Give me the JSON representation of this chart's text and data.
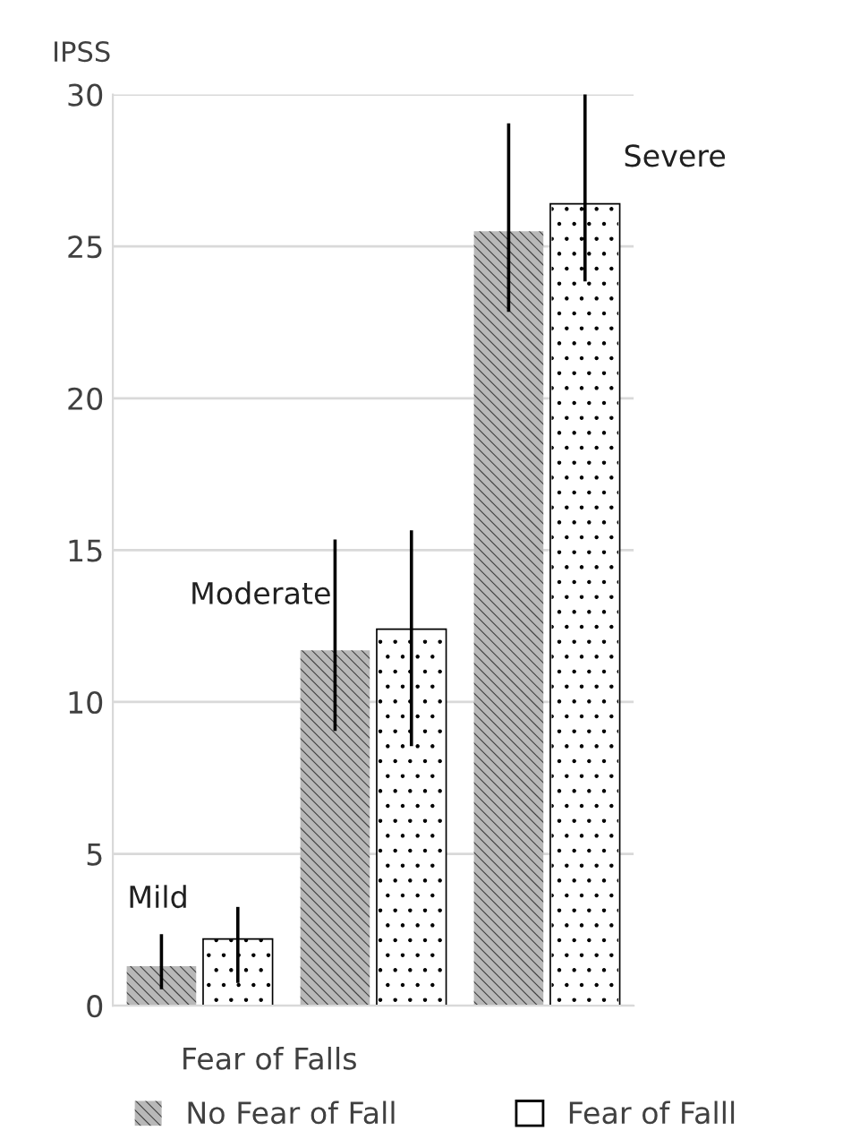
{
  "chart_data": {
    "type": "bar",
    "ylabel": "IPSS",
    "xlabel": "Fear of Falls",
    "categories": [
      null,
      null,
      null
    ],
    "series": [
      {
        "name": "No Fear of Fall",
        "color": "#b8b8b8",
        "values": [
          1.3,
          11.7,
          25.5
        ],
        "errors": [
          [
            0.6,
            2.3
          ],
          [
            9.1,
            15.3
          ],
          [
            22.9,
            29.0
          ]
        ]
      },
      {
        "name": "Fear of Falll",
        "color": "#ffffff",
        "values": [
          2.2,
          12.4,
          26.4
        ],
        "errors": [
          [
            0.8,
            3.2
          ],
          [
            8.6,
            15.6
          ],
          [
            23.9,
            30.0
          ]
        ]
      }
    ],
    "annotations": [
      "Mild",
      "Moderate",
      "Severe"
    ],
    "ylim": [
      0,
      30
    ],
    "yticks": [
      0,
      5,
      10,
      15,
      20,
      25,
      30
    ],
    "grid": "y",
    "legend": "bottom"
  }
}
